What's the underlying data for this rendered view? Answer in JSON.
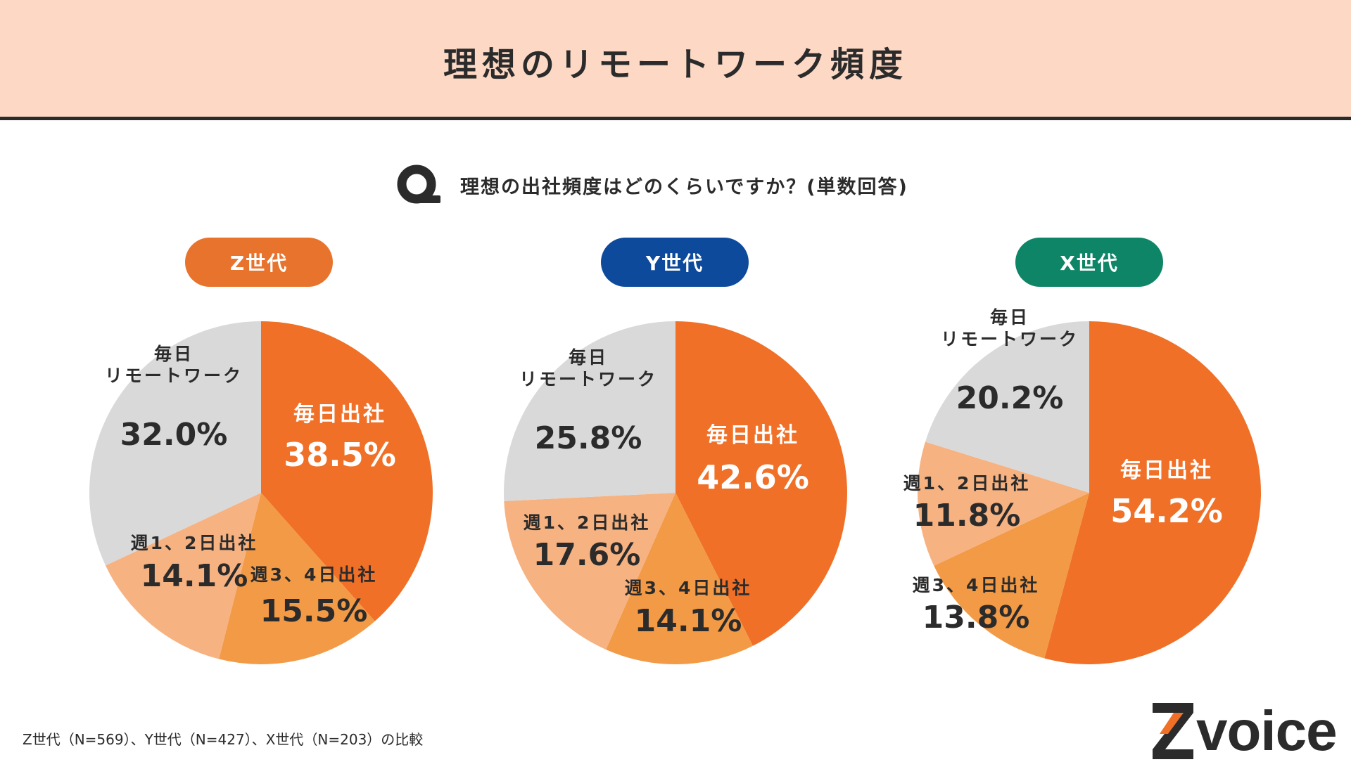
{
  "title": "理想のリモートワーク頻度",
  "question": {
    "icon": "q-icon",
    "text": "理想の出社頻度はどのくらいですか？(単数回答)"
  },
  "colors": {
    "daily_office": "#f07027",
    "office_3_4": "#f39a46",
    "office_1_2": "#f6b281",
    "daily_remote": "#d9d9d9",
    "z_gen": "#e8732c",
    "y_gen": "#0d4a9b",
    "x_gen": "#0e8566"
  },
  "chart_data": [
    {
      "type": "pie",
      "title": "Z世代",
      "slices": [
        {
          "label": "毎日出社",
          "value": 38.5,
          "display": "38.5%"
        },
        {
          "label": "週3、4日出社",
          "value": 15.5,
          "display": "15.5%"
        },
        {
          "label": "週1、2日出社",
          "value": 14.1,
          "display": "14.1%"
        },
        {
          "label": "毎日\nリモートワーク",
          "value": 32.0,
          "display": "32.0%"
        }
      ]
    },
    {
      "type": "pie",
      "title": "Y世代",
      "slices": [
        {
          "label": "毎日出社",
          "value": 42.6,
          "display": "42.6%"
        },
        {
          "label": "週3、4日出社",
          "value": 14.1,
          "display": "14.1%"
        },
        {
          "label": "週1、2日出社",
          "value": 17.6,
          "display": "17.6%"
        },
        {
          "label": "毎日\nリモートワーク",
          "value": 25.8,
          "display": "25.8%"
        }
      ]
    },
    {
      "type": "pie",
      "title": "X世代",
      "slices": [
        {
          "label": "毎日出社",
          "value": 54.2,
          "display": "54.2%"
        },
        {
          "label": "週3、4日出社",
          "value": 13.8,
          "display": "13.8%"
        },
        {
          "label": "週1、2日出社",
          "value": 11.8,
          "display": "11.8%"
        },
        {
          "label": "毎日\nリモートワーク",
          "value": 20.2,
          "display": "20.2%"
        }
      ]
    }
  ],
  "footnote": "Z世代（N=569）、Y世代（N=427）、X世代（N=203）の比較",
  "logo": {
    "text": "voice",
    "icon": "z-logo-icon"
  }
}
